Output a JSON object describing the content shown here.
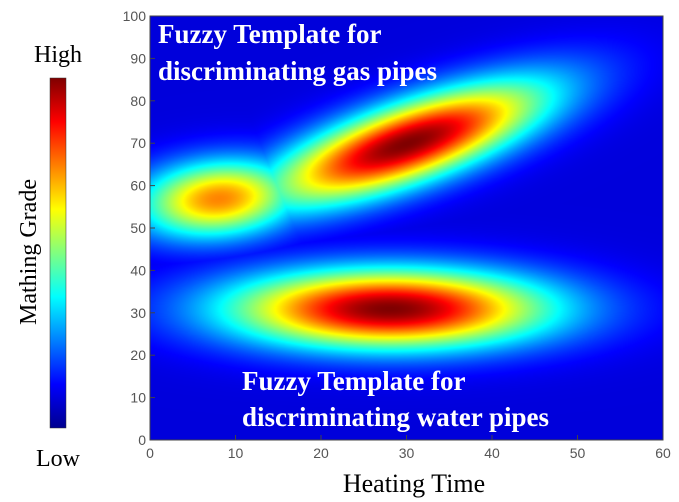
{
  "chart_data": {
    "type": "heatmap",
    "title": "",
    "xlabel": "Heating Time",
    "ylabel": "",
    "xlim": [
      0,
      60
    ],
    "ylim": [
      0,
      100
    ],
    "xticks": [
      "0",
      "10",
      "20",
      "30",
      "40",
      "50",
      "60"
    ],
    "yticks": [
      "0",
      "10",
      "20",
      "30",
      "40",
      "50",
      "60",
      "70",
      "80",
      "90",
      "100"
    ],
    "colorbar": {
      "label": "Mathing Grade",
      "high_label": "High",
      "low_label": "Low",
      "colormap": "jet"
    },
    "clusters": [
      {
        "center": [
          30,
          70
        ],
        "sd_along": 14,
        "sd_across": 5.5,
        "slope": 0.85,
        "peak": 1.0
      },
      {
        "center": [
          8,
          57
        ],
        "sd_along": 7,
        "sd_across": 6,
        "slope": 0.85,
        "peak": 0.72
      },
      {
        "center": [
          28,
          31
        ],
        "sd_along": 13,
        "sd_across": 6.5,
        "slope": 0.0,
        "peak": 1.0
      }
    ],
    "annotations": [
      {
        "line1": "Fuzzy Template for",
        "line2": "discriminating gas pipes"
      },
      {
        "line1": "Fuzzy Template for",
        "line2": "discriminating water pipes"
      }
    ]
  }
}
